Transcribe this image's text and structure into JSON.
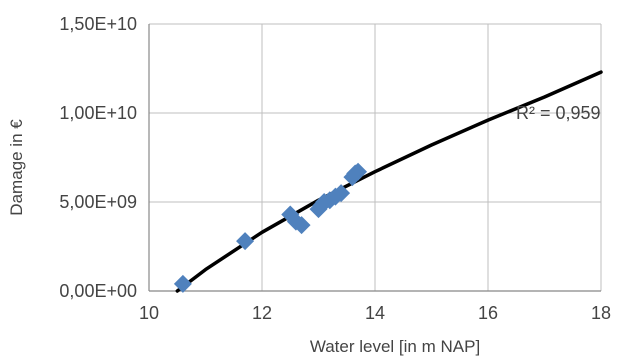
{
  "chart_data": {
    "type": "scatter",
    "xlabel": "Water level  [in m  NAP]",
    "ylabel": "Damage in €",
    "xlim": [
      10,
      18
    ],
    "ylim": [
      0,
      15000000000
    ],
    "x_ticks": [
      10,
      12,
      14,
      16,
      18
    ],
    "x_tick_labels": [
      "10",
      "12",
      "14",
      "16",
      "18"
    ],
    "y_ticks": [
      0,
      5000000000,
      10000000000,
      15000000000
    ],
    "y_tick_labels": [
      "0,00E+00",
      "5,00E+09",
      "1,00E+10",
      "1,50E+10"
    ],
    "grid": true,
    "legend": "none",
    "points": [
      {
        "x": 10.6,
        "y": 400000000
      },
      {
        "x": 11.7,
        "y": 2800000000
      },
      {
        "x": 12.5,
        "y": 4300000000
      },
      {
        "x": 12.6,
        "y": 3900000000
      },
      {
        "x": 12.7,
        "y": 3700000000
      },
      {
        "x": 13.0,
        "y": 4600000000
      },
      {
        "x": 13.05,
        "y": 4800000000
      },
      {
        "x": 13.1,
        "y": 5000000000
      },
      {
        "x": 13.2,
        "y": 5100000000
      },
      {
        "x": 13.3,
        "y": 5300000000
      },
      {
        "x": 13.4,
        "y": 5500000000
      },
      {
        "x": 13.6,
        "y": 6400000000
      },
      {
        "x": 13.65,
        "y": 6600000000
      },
      {
        "x": 13.7,
        "y": 6700000000
      }
    ],
    "trendline": {
      "annotation": "R² = 0,959",
      "x": [
        10.5,
        11,
        12,
        13,
        14,
        15,
        16,
        17,
        18
      ],
      "y": [
        0,
        1200000000,
        3300000000,
        5100000000,
        6700000000,
        8200000000,
        9600000000,
        10900000000,
        12300000000
      ]
    },
    "colors": {
      "marker": "#4F81BD",
      "trendline": "#000000",
      "grid": "#BFBFBF",
      "axis": "#888888"
    }
  }
}
